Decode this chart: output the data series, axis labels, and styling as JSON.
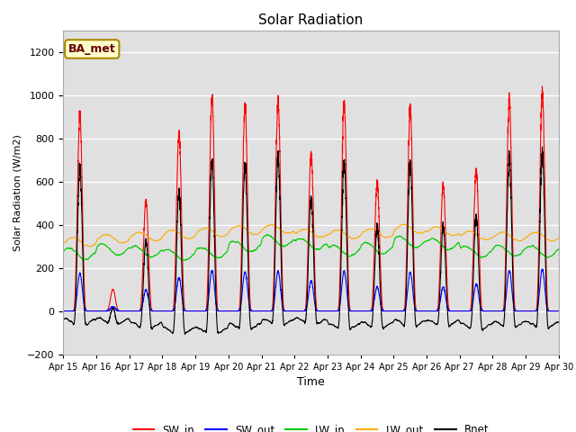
{
  "title": "Solar Radiation",
  "ylabel": "Solar Radiation (W/m2)",
  "xlabel": "Time",
  "annotation": "BA_met",
  "ylim": [
    -200,
    1300
  ],
  "yticks": [
    -200,
    0,
    200,
    400,
    600,
    800,
    1000,
    1200
  ],
  "n_days": 15,
  "start_day": 15,
  "colors": {
    "SW_in": "#ff0000",
    "SW_out": "#0000ff",
    "LW_in": "#00cc00",
    "LW_out": "#ffaa00",
    "Rnet": "#000000"
  },
  "ax_facecolor": "#e0e0e0",
  "fig_facecolor": "#ffffff",
  "grid_color": "#ffffff",
  "sw_in_peaks": [
    910,
    100,
    510,
    820,
    980,
    950,
    960,
    730,
    960,
    590,
    940,
    580,
    660,
    980,
    1010
  ],
  "lw_in_bases": [
    265,
    285,
    275,
    260,
    270,
    300,
    325,
    310,
    280,
    290,
    320,
    310,
    275,
    280,
    275
  ],
  "lw_out_bases": [
    320,
    335,
    345,
    355,
    365,
    375,
    380,
    360,
    355,
    360,
    380,
    370,
    350,
    345,
    345
  ]
}
